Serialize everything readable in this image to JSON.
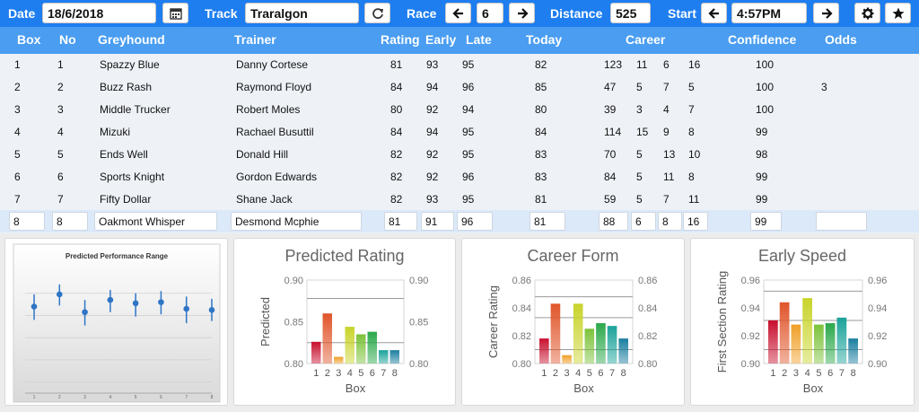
{
  "toolbar": {
    "date_label": "Date",
    "date_value": "18/6/2018",
    "track_label": "Track",
    "track_value": "Traralgon",
    "race_label": "Race",
    "race_value": "6",
    "distance_label": "Distance",
    "distance_value": "525",
    "start_label": "Start",
    "start_value": "4:57PM",
    "calendar_icon": "calendar-icon",
    "refresh_icon": "refresh-icon",
    "settings_icon": "gear-icon",
    "favorite_icon": "star-icon"
  },
  "columns": {
    "box": "Box",
    "no": "No",
    "greyhound": "Greyhound",
    "trainer": "Trainer",
    "rating": "Rating",
    "early": "Early",
    "late": "Late",
    "today": "Today",
    "career": "Career",
    "confidence": "Confidence",
    "odds": "Odds"
  },
  "rows": [
    {
      "box": "1",
      "no": "1",
      "greyhound": "Spazzy Blue",
      "trainer": "Danny Cortese",
      "rating": "81",
      "early": "93",
      "late": "95",
      "today": "82",
      "c1": "123",
      "c2": "11",
      "c3": "6",
      "c4": "16",
      "confidence": "100",
      "odds": ""
    },
    {
      "box": "2",
      "no": "2",
      "greyhound": "Buzz Rash",
      "trainer": "Raymond Floyd",
      "rating": "84",
      "early": "94",
      "late": "96",
      "today": "85",
      "c1": "47",
      "c2": "5",
      "c3": "7",
      "c4": "5",
      "confidence": "100",
      "odds": "3"
    },
    {
      "box": "3",
      "no": "3",
      "greyhound": "Middle Trucker",
      "trainer": "Robert Moles",
      "rating": "80",
      "early": "92",
      "late": "94",
      "today": "80",
      "c1": "39",
      "c2": "3",
      "c3": "4",
      "c4": "7",
      "confidence": "100",
      "odds": ""
    },
    {
      "box": "4",
      "no": "4",
      "greyhound": "Mizuki",
      "trainer": "Rachael Busuttil",
      "rating": "84",
      "early": "94",
      "late": "95",
      "today": "84",
      "c1": "114",
      "c2": "15",
      "c3": "9",
      "c4": "8",
      "confidence": "99",
      "odds": ""
    },
    {
      "box": "5",
      "no": "5",
      "greyhound": "Ends Well",
      "trainer": "Donald Hill",
      "rating": "82",
      "early": "92",
      "late": "95",
      "today": "83",
      "c1": "70",
      "c2": "5",
      "c3": "13",
      "c4": "10",
      "confidence": "98",
      "odds": ""
    },
    {
      "box": "6",
      "no": "6",
      "greyhound": "Sports Knight",
      "trainer": "Gordon Edwards",
      "rating": "82",
      "early": "92",
      "late": "96",
      "today": "83",
      "c1": "84",
      "c2": "5",
      "c3": "11",
      "c4": "8",
      "confidence": "99",
      "odds": ""
    },
    {
      "box": "7",
      "no": "7",
      "greyhound": "Fifty Dollar",
      "trainer": "Shane Jack",
      "rating": "82",
      "early": "93",
      "late": "95",
      "today": "81",
      "c1": "59",
      "c2": "5",
      "c3": "7",
      "c4": "11",
      "confidence": "99",
      "odds": ""
    },
    {
      "box": "8",
      "no": "8",
      "greyhound": "Oakmont Whisper",
      "trainer": "Desmond Mcphie",
      "rating": "81",
      "early": "91",
      "late": "96",
      "today": "81",
      "c1": "88",
      "c2": "6",
      "c3": "8",
      "c4": "16",
      "confidence": "99",
      "odds": ""
    }
  ],
  "colors": {
    "accent": "#1e7ef0",
    "header": "#4a9df0",
    "bar_gradient": [
      "#c8102e",
      "#e0552a",
      "#f0a028",
      "#c8d42a",
      "#7cc23a",
      "#2aa84a",
      "#1aa29a",
      "#1a7ea0"
    ]
  },
  "chart_data": [
    {
      "type": "scatter",
      "title": "Predicted Performance Range",
      "categories": [
        "1",
        "2",
        "3",
        "4",
        "5",
        "6",
        "7",
        "8"
      ],
      "mid": [
        0.838,
        0.849,
        0.833,
        0.844,
        0.841,
        0.842,
        0.836,
        0.835
      ],
      "low": [
        0.826,
        0.839,
        0.821,
        0.833,
        0.829,
        0.831,
        0.823,
        0.825
      ],
      "high": [
        0.849,
        0.858,
        0.844,
        0.853,
        0.85,
        0.852,
        0.847,
        0.845
      ],
      "ylim": [
        0.76,
        0.87
      ]
    },
    {
      "type": "bar",
      "title": "Predicted Rating",
      "xlabel": "Box",
      "ylabel": "Predicted",
      "categories": [
        "1",
        "2",
        "3",
        "4",
        "5",
        "6",
        "7",
        "8"
      ],
      "values": [
        0.826,
        0.86,
        0.808,
        0.844,
        0.835,
        0.838,
        0.816,
        0.816
      ],
      "ylim": [
        0.8,
        0.9
      ],
      "ticks": [
        "0.80",
        "0.85",
        "0.90"
      ],
      "ref_lines": [
        0.878,
        0.825
      ]
    },
    {
      "type": "bar",
      "title": "Career Form",
      "xlabel": "Box",
      "ylabel": "Career Rating",
      "categories": [
        "1",
        "2",
        "3",
        "4",
        "5",
        "6",
        "7",
        "8"
      ],
      "values": [
        0.818,
        0.843,
        0.806,
        0.843,
        0.825,
        0.829,
        0.827,
        0.818
      ],
      "ylim": [
        0.8,
        0.86
      ],
      "ticks": [
        "0.80",
        "0.82",
        "0.84",
        "0.86"
      ],
      "ref_lines": [
        0.848,
        0.833,
        0.81
      ]
    },
    {
      "type": "bar",
      "title": "Early Speed",
      "xlabel": "Box",
      "ylabel": "First Section Rating",
      "categories": [
        "1",
        "2",
        "3",
        "4",
        "5",
        "6",
        "7",
        "8"
      ],
      "values": [
        0.931,
        0.944,
        0.928,
        0.947,
        0.928,
        0.929,
        0.933,
        0.918
      ],
      "ylim": [
        0.9,
        0.96
      ],
      "ticks": [
        "0.90",
        "0.92",
        "0.94",
        "0.96"
      ],
      "ref_lines": [
        0.952,
        0.931,
        0.91
      ]
    }
  ]
}
